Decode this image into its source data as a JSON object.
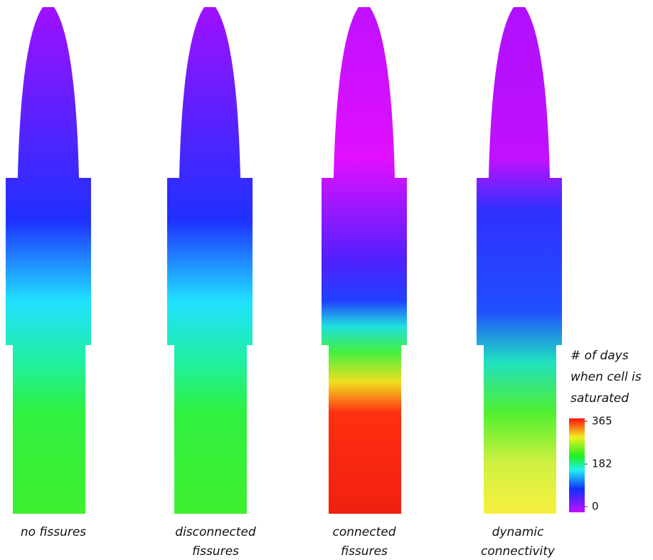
{
  "panels": [
    {
      "label": [
        "no fissures"
      ]
    },
    {
      "label": [
        "disconnected",
        "fissures"
      ]
    },
    {
      "label": [
        "connected",
        "fissures"
      ]
    },
    {
      "label": [
        "dynamic",
        "connectivity"
      ]
    }
  ],
  "colorbar": {
    "title": [
      "# of days",
      "when cell is",
      "saturated"
    ],
    "lim": [
      0,
      365
    ],
    "ticks": [
      0,
      182,
      365
    ]
  }
}
